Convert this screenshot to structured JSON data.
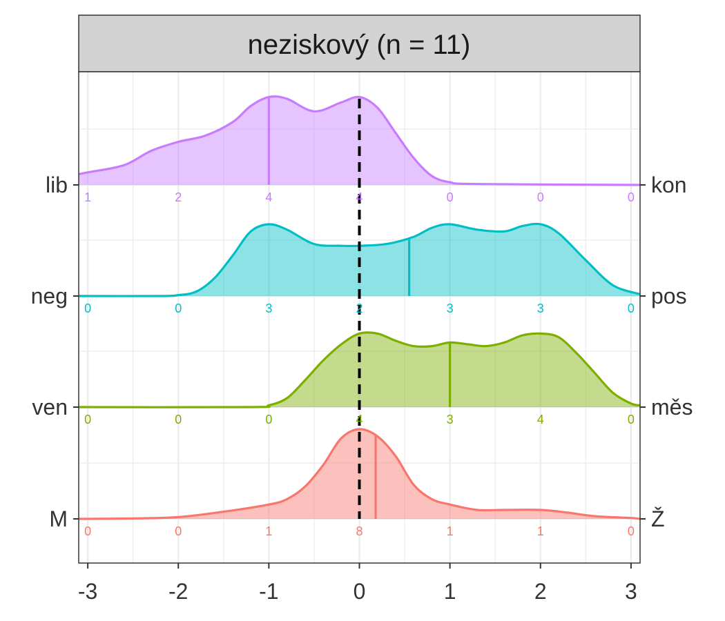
{
  "chart_data": {
    "type": "ridgeline-density",
    "title": "neziskový (n = 11)",
    "xlim": [
      -3.1,
      3.1
    ],
    "x_ticks": [
      "-3",
      "-2",
      "-1",
      "0",
      "1",
      "2",
      "3"
    ],
    "reference_line_x": 0,
    "grid": true,
    "series": [
      {
        "left_label": "lib",
        "right_label": "kon",
        "color": "#C77CFF",
        "mean": -1,
        "counts": [
          1,
          2,
          4,
          4,
          0,
          0,
          0
        ],
        "density": [
          [
            -3.1,
            0.12
          ],
          [
            -3,
            0.14
          ],
          [
            -2.6,
            0.22
          ],
          [
            -2.3,
            0.38
          ],
          [
            -2,
            0.48
          ],
          [
            -1.7,
            0.55
          ],
          [
            -1.4,
            0.7
          ],
          [
            -1.2,
            0.88
          ],
          [
            -1,
            0.98
          ],
          [
            -0.8,
            0.96
          ],
          [
            -0.5,
            0.82
          ],
          [
            -0.2,
            0.92
          ],
          [
            0,
            0.98
          ],
          [
            0.2,
            0.86
          ],
          [
            0.4,
            0.58
          ],
          [
            0.6,
            0.3
          ],
          [
            0.8,
            0.1
          ],
          [
            1,
            0.03
          ],
          [
            1.3,
            0.01
          ],
          [
            3.1,
            0
          ]
        ]
      },
      {
        "left_label": "neg",
        "right_label": "pos",
        "color": "#00BFC4",
        "mean": 0.55,
        "counts": [
          0,
          0,
          3,
          2,
          3,
          3,
          0
        ],
        "density": [
          [
            -3.1,
            0
          ],
          [
            -2.2,
            0
          ],
          [
            -2,
            0.01
          ],
          [
            -1.8,
            0.05
          ],
          [
            -1.6,
            0.2
          ],
          [
            -1.4,
            0.45
          ],
          [
            -1.2,
            0.72
          ],
          [
            -1,
            0.8
          ],
          [
            -0.8,
            0.74
          ],
          [
            -0.5,
            0.58
          ],
          [
            -0.2,
            0.56
          ],
          [
            0,
            0.56
          ],
          [
            0.3,
            0.58
          ],
          [
            0.6,
            0.66
          ],
          [
            0.8,
            0.76
          ],
          [
            1,
            0.8
          ],
          [
            1.3,
            0.74
          ],
          [
            1.6,
            0.72
          ],
          [
            1.8,
            0.78
          ],
          [
            2,
            0.8
          ],
          [
            2.2,
            0.7
          ],
          [
            2.5,
            0.4
          ],
          [
            2.8,
            0.12
          ],
          [
            3.1,
            0.02
          ]
        ]
      },
      {
        "left_label": "ven",
        "right_label": "měs",
        "color": "#7CAE00",
        "mean": 1,
        "counts": [
          0,
          0,
          0,
          4,
          3,
          4,
          0
        ],
        "density": [
          [
            -3.1,
            0
          ],
          [
            -1.2,
            0
          ],
          [
            -1,
            0.02
          ],
          [
            -0.8,
            0.1
          ],
          [
            -0.6,
            0.3
          ],
          [
            -0.4,
            0.52
          ],
          [
            -0.2,
            0.7
          ],
          [
            0,
            0.82
          ],
          [
            0.2,
            0.82
          ],
          [
            0.4,
            0.74
          ],
          [
            0.6,
            0.68
          ],
          [
            0.8,
            0.68
          ],
          [
            1,
            0.72
          ],
          [
            1.2,
            0.7
          ],
          [
            1.4,
            0.68
          ],
          [
            1.6,
            0.72
          ],
          [
            1.8,
            0.8
          ],
          [
            2,
            0.82
          ],
          [
            2.2,
            0.78
          ],
          [
            2.4,
            0.6
          ],
          [
            2.6,
            0.38
          ],
          [
            2.8,
            0.16
          ],
          [
            3,
            0.04
          ],
          [
            3.1,
            0.02
          ]
        ]
      },
      {
        "left_label": "M",
        "right_label": "Ž",
        "color": "#F8766D",
        "mean": 0.18,
        "counts": [
          0,
          0,
          1,
          8,
          1,
          1,
          0
        ],
        "density": [
          [
            -3.1,
            0
          ],
          [
            -2.5,
            0.005
          ],
          [
            -2,
            0.02
          ],
          [
            -1.5,
            0.08
          ],
          [
            -1,
            0.16
          ],
          [
            -0.8,
            0.22
          ],
          [
            -0.6,
            0.36
          ],
          [
            -0.4,
            0.6
          ],
          [
            -0.2,
            0.9
          ],
          [
            0,
            1
          ],
          [
            0.2,
            0.92
          ],
          [
            0.4,
            0.7
          ],
          [
            0.6,
            0.38
          ],
          [
            0.8,
            0.22
          ],
          [
            1,
            0.16
          ],
          [
            1.3,
            0.1
          ],
          [
            1.6,
            0.1
          ],
          [
            2,
            0.1
          ],
          [
            2.3,
            0.07
          ],
          [
            2.6,
            0.03
          ],
          [
            3,
            0.01
          ],
          [
            3.1,
            0
          ]
        ]
      }
    ]
  }
}
